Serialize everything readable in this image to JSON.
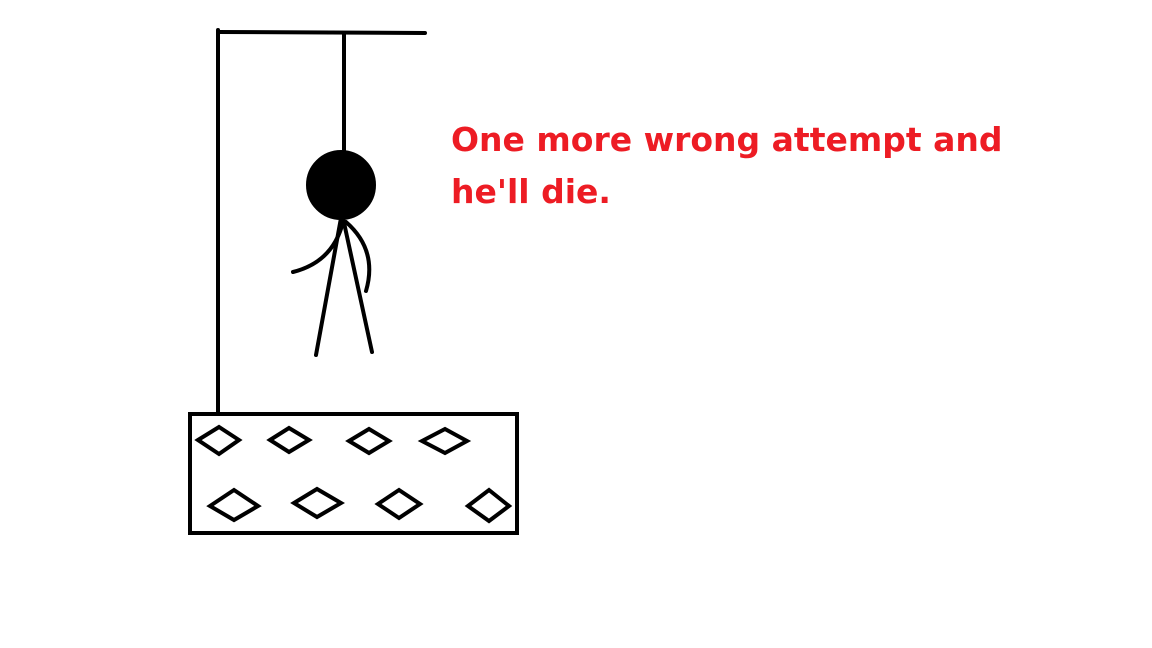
{
  "message": {
    "line1": "One more wrong attempt and",
    "line2": "he'll die.",
    "color": "#ed1c24"
  },
  "drawing": {
    "stroke_color": "#000000",
    "background": "#ffffff",
    "figure": "stick-figure-hanging",
    "structure": "gallows-with-patterned-base"
  }
}
